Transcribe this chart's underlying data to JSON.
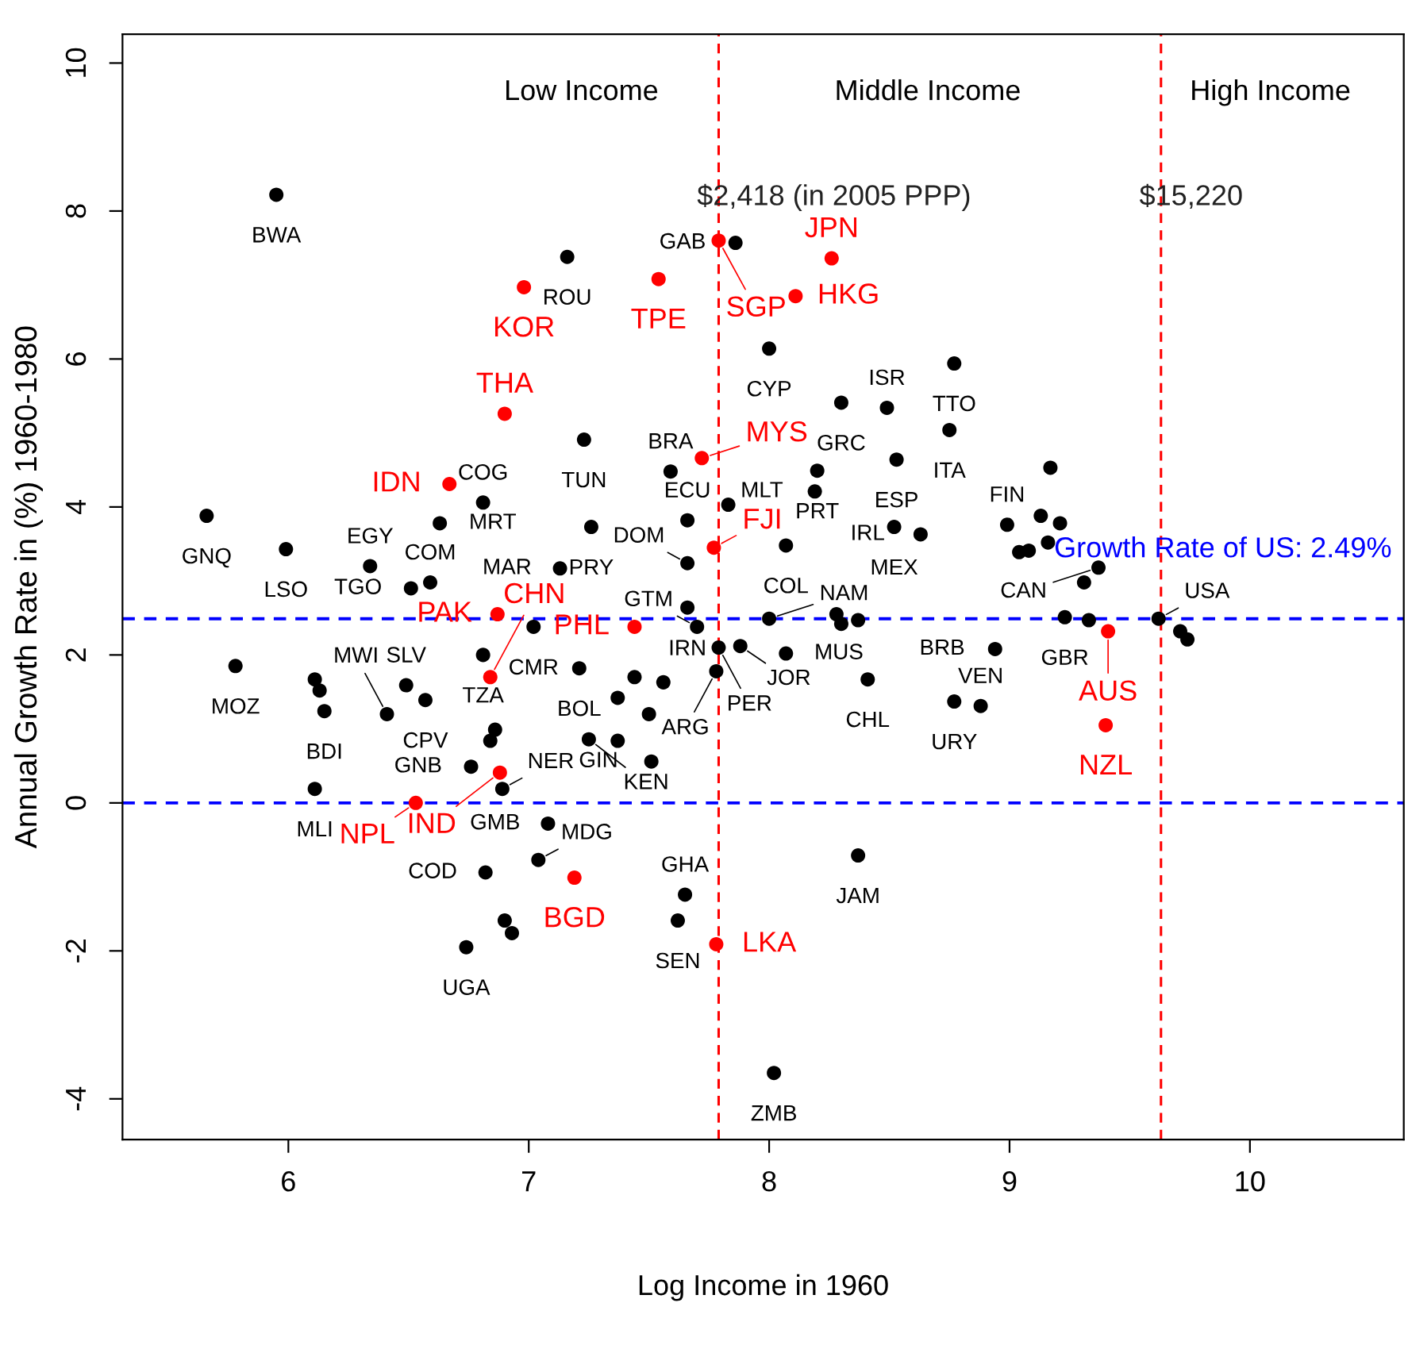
{
  "chart_data": {
    "type": "scatter",
    "xlabel": "Log Income in 1960",
    "ylabel": "Annual Growth Rate in (%) 1960-1980",
    "xlim": [
      5.31,
      10.64
    ],
    "ylim": [
      -4.55,
      10.39
    ],
    "xticks": [
      6,
      7,
      8,
      9,
      10
    ],
    "yticks": [
      -4,
      -2,
      0,
      2,
      4,
      6,
      8,
      10
    ],
    "grid": false,
    "marker": "circle",
    "legend": false,
    "series": [
      {
        "color": "#000000",
        "x": [
          5.95,
          5.66,
          5.99,
          6.34,
          6.63,
          6.51,
          6.59,
          6.81,
          7.02,
          7.13,
          7.26,
          7.23,
          7.16,
          7.86,
          8.0,
          8.3,
          8.49,
          8.53,
          8.77,
          8.75,
          8.2,
          8.19,
          8.52,
          8.63,
          8.07,
          7.59,
          7.66,
          7.83,
          7.66,
          7.66,
          7.7,
          7.88,
          8.0,
          8.07,
          7.79,
          7.78,
          8.28,
          8.3,
          8.37,
          8.41,
          8.37,
          8.02,
          7.65,
          7.62,
          7.08,
          7.04,
          6.82,
          6.9,
          6.93,
          6.74,
          6.76,
          6.89,
          6.81,
          6.84,
          6.86,
          5.78,
          6.11,
          6.13,
          6.15,
          6.11,
          6.49,
          6.57,
          6.41,
          7.21,
          7.44,
          7.56,
          7.37,
          7.37,
          7.5,
          7.51,
          7.25,
          8.99,
          9.17,
          9.13,
          9.21,
          9.04,
          9.08,
          9.16,
          9.31,
          9.37,
          9.23,
          9.33,
          9.62,
          9.71,
          9.74,
          8.94,
          8.77,
          8.88
        ],
        "values": [
          8.22,
          3.88,
          3.43,
          3.2,
          3.78,
          2.9,
          2.98,
          4.06,
          2.38,
          3.17,
          3.73,
          4.91,
          7.38,
          7.57,
          6.14,
          5.41,
          5.34,
          4.64,
          5.94,
          5.04,
          4.49,
          4.21,
          3.73,
          3.63,
          3.48,
          4.48,
          3.82,
          4.03,
          3.24,
          2.64,
          2.38,
          2.12,
          2.49,
          2.02,
          2.1,
          1.78,
          2.55,
          2.42,
          2.47,
          1.67,
          -0.71,
          -3.65,
          -1.24,
          -1.59,
          -0.28,
          -0.77,
          -0.94,
          -1.59,
          -1.76,
          -1.95,
          0.49,
          0.19,
          2.0,
          0.84,
          0.99,
          1.85,
          1.67,
          1.52,
          1.24,
          0.19,
          1.59,
          1.39,
          1.2,
          1.82,
          1.7,
          1.63,
          1.42,
          0.84,
          1.2,
          0.56,
          0.86,
          3.76,
          4.53,
          3.88,
          3.78,
          3.39,
          3.41,
          3.52,
          2.98,
          3.18,
          2.51,
          2.47,
          2.49,
          2.32,
          2.21,
          2.08,
          1.37,
          1.31
        ]
      },
      {
        "color": "#ff0000",
        "x": [
          6.98,
          6.9,
          6.67,
          6.87,
          6.84,
          6.88,
          6.53,
          7.54,
          7.79,
          8.11,
          8.26,
          7.72,
          7.77,
          7.44,
          7.19,
          7.78,
          9.41,
          9.4
        ],
        "values": [
          6.97,
          5.26,
          4.31,
          2.55,
          1.7,
          0.41,
          0.0,
          7.08,
          7.6,
          6.85,
          7.36,
          4.66,
          3.45,
          2.38,
          -1.01,
          -1.91,
          2.32,
          1.05
        ]
      }
    ],
    "ref_lines": [
      {
        "axis": "x",
        "value": 7.79,
        "color": "#ff0000",
        "line_style": "dashed"
      },
      {
        "axis": "x",
        "value": 9.63,
        "color": "#ff0000",
        "line_style": "dashed"
      },
      {
        "axis": "y",
        "value": 2.49,
        "label": "Growth Rate of US: 2.49%",
        "color": "#0000ff",
        "line_style": "dashed"
      },
      {
        "axis": "y",
        "value": 0,
        "color": "#0000ff",
        "line_style": "dashed"
      }
    ],
    "annotations": [
      "Low Income",
      "Middle Income",
      "High Income",
      "$2,418 (in 2005 PPP)",
      "$15,220",
      {
        "text": "BWA",
        "x": 5.95,
        "y": 8.22
      },
      {
        "text": "GNQ",
        "x": 5.66,
        "y": 3.88
      },
      {
        "text": "LSO",
        "x": 5.99,
        "y": 3.43
      },
      {
        "text": "EGY",
        "x": 6.34,
        "y": 3.2
      },
      {
        "text": "MRT",
        "x": 6.63,
        "y": 3.78
      },
      {
        "text": "TGO",
        "x": 6.51,
        "y": 2.9
      },
      {
        "text": "COM",
        "x": 6.59,
        "y": 2.98
      },
      {
        "text": "COG",
        "x": 6.81,
        "y": 4.06
      },
      {
        "text": "CMR",
        "x": 7.02,
        "y": 2.38
      },
      {
        "text": "MAR",
        "x": 7.13,
        "y": 3.17
      },
      {
        "text": "PRY",
        "x": 7.26,
        "y": 3.73
      },
      {
        "text": "TUN",
        "x": 7.23,
        "y": 4.91
      },
      {
        "text": "ROU",
        "x": 7.16,
        "y": 7.38
      },
      {
        "text": "GAB",
        "x": 7.86,
        "y": 7.57
      },
      {
        "text": "CYP",
        "x": 8.0,
        "y": 6.14
      },
      {
        "text": "GRC",
        "x": 8.3,
        "y": 5.41
      },
      {
        "text": "ISR",
        "x": 8.49,
        "y": 5.34
      },
      {
        "text": "ESP",
        "x": 8.53,
        "y": 4.64
      },
      {
        "text": "TTO",
        "x": 8.77,
        "y": 5.94
      },
      {
        "text": "ITA",
        "x": 8.75,
        "y": 5.04
      },
      {
        "text": "PRT",
        "x": 8.2,
        "y": 4.49
      },
      {
        "text": "MLT",
        "x": 8.19,
        "y": 4.21
      },
      {
        "text": "MEX",
        "x": 8.52,
        "y": 3.73
      },
      {
        "text": "IRL",
        "x": 8.63,
        "y": 3.63
      },
      {
        "text": "COL",
        "x": 8.07,
        "y": 3.48
      },
      {
        "text": "BRA",
        "x": 7.59,
        "y": 4.48
      },
      {
        "text": "ECU",
        "x": 7.66,
        "y": 3.82
      },
      {
        "text": "DOM",
        "x": 7.66,
        "y": 3.24
      },
      {
        "text": "IRN",
        "x": 7.66,
        "y": 2.64
      },
      {
        "text": "GTM",
        "x": 7.7,
        "y": 2.38
      },
      {
        "text": "JOR",
        "x": 7.88,
        "y": 2.12
      },
      {
        "text": "NAM",
        "x": 8.0,
        "y": 2.49
      },
      {
        "text": "MUS",
        "x": 8.07,
        "y": 2.02
      },
      {
        "text": "PER",
        "x": 7.79,
        "y": 2.1
      },
      {
        "text": "ARG",
        "x": 7.78,
        "y": 1.78
      },
      {
        "text": "CHL",
        "x": 8.41,
        "y": 1.67
      },
      {
        "text": "JAM",
        "x": 8.37,
        "y": -0.71
      },
      {
        "text": "ZMB",
        "x": 8.02,
        "y": -3.65
      },
      {
        "text": "GHA",
        "x": 7.65,
        "y": -1.24
      },
      {
        "text": "SEN",
        "x": 7.62,
        "y": -1.59
      },
      {
        "text": "GMB",
        "x": 7.08,
        "y": -0.28
      },
      {
        "text": "MDG",
        "x": 7.04,
        "y": -0.77
      },
      {
        "text": "COD",
        "x": 6.82,
        "y": -0.94
      },
      {
        "text": "UGA",
        "x": 6.74,
        "y": -1.95
      },
      {
        "text": "GNB",
        "x": 6.76,
        "y": 0.49
      },
      {
        "text": "NER",
        "x": 6.89,
        "y": 0.19
      },
      {
        "text": "TZA",
        "x": 6.81,
        "y": 2.0
      },
      {
        "text": "MOZ",
        "x": 5.78,
        "y": 1.85
      },
      {
        "text": "BDI",
        "x": 6.15,
        "y": 1.24
      },
      {
        "text": "MLI",
        "x": 6.11,
        "y": 0.19
      },
      {
        "text": "SLV",
        "x": 6.49,
        "y": 1.59
      },
      {
        "text": "CPV",
        "x": 6.57,
        "y": 1.39
      },
      {
        "text": "MWI",
        "x": 6.41,
        "y": 1.2
      },
      {
        "text": "BOL",
        "x": 7.21,
        "y": 1.82
      },
      {
        "text": "GIN",
        "x": 7.51,
        "y": 0.56
      },
      {
        "text": "KEN",
        "x": 7.25,
        "y": 0.86
      },
      {
        "text": "FIN",
        "x": 8.99,
        "y": 3.76
      },
      {
        "text": "CAN",
        "x": 9.37,
        "y": 3.18
      },
      {
        "text": "GBR",
        "x": 9.23,
        "y": 2.51
      },
      {
        "text": "USA",
        "x": 9.62,
        "y": 2.49
      },
      {
        "text": "BRB",
        "x": 8.94,
        "y": 2.08
      },
      {
        "text": "URY",
        "x": 8.77,
        "y": 1.37
      },
      {
        "text": "VEN",
        "x": 8.88,
        "y": 1.31
      },
      {
        "text": "KOR",
        "x": 6.98,
        "y": 6.97
      },
      {
        "text": "THA",
        "x": 6.9,
        "y": 5.26
      },
      {
        "text": "IDN",
        "x": 6.67,
        "y": 4.31
      },
      {
        "text": "PAK",
        "x": 6.87,
        "y": 2.55
      },
      {
        "text": "CHN",
        "x": 6.84,
        "y": 1.7
      },
      {
        "text": "IND",
        "x": 6.88,
        "y": 0.41
      },
      {
        "text": "NPL",
        "x": 6.53,
        "y": 0.0
      },
      {
        "text": "TPE",
        "x": 7.54,
        "y": 7.08
      },
      {
        "text": "SGP",
        "x": 7.79,
        "y": 7.6
      },
      {
        "text": "HKG",
        "x": 8.11,
        "y": 6.85
      },
      {
        "text": "JPN",
        "x": 8.26,
        "y": 7.36
      },
      {
        "text": "MYS",
        "x": 7.72,
        "y": 4.66
      },
      {
        "text": "FJI",
        "x": 7.77,
        "y": 3.45
      },
      {
        "text": "PHL",
        "x": 7.44,
        "y": 2.38
      },
      {
        "text": "BGD",
        "x": 7.19,
        "y": -1.01
      },
      {
        "text": "LKA",
        "x": 7.78,
        "y": -1.91
      },
      {
        "text": "AUS",
        "x": 9.41,
        "y": 2.32
      },
      {
        "text": "NZL",
        "x": 9.4,
        "y": 1.05
      }
    ]
  }
}
